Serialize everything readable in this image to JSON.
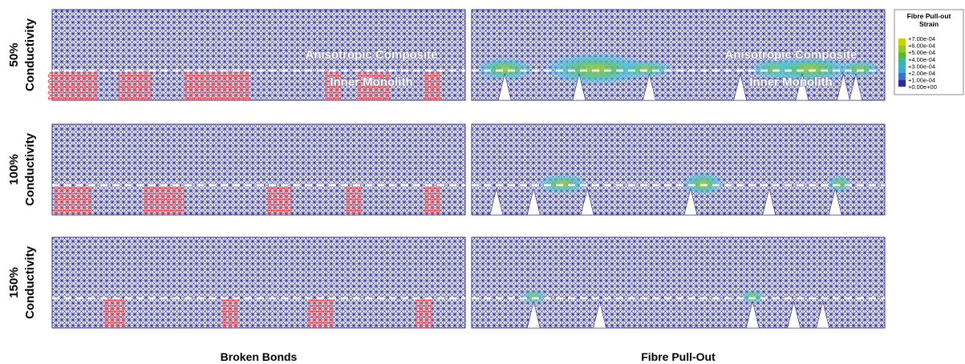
{
  "rows": [
    {
      "percent": "50%",
      "label": "Conductivity"
    },
    {
      "percent": "100%",
      "label": "Conductivity"
    },
    {
      "percent": "150%",
      "label": "Conductivity"
    }
  ],
  "columns": [
    "Broken Bonds",
    "Fibre Pull-Out"
  ],
  "annotations": {
    "upper": "Anisotropic Composite",
    "lower": "Inner Monolith"
  },
  "legend": {
    "title": [
      "Fibre Pull-out",
      "Strain"
    ],
    "labels": [
      "+7.00e-04",
      "+6.00e-04",
      "+5.00e-04",
      "+4.00e-04",
      "+3.00e-04",
      "+2.00e-04",
      "+1.00e-04",
      "+0.00e+00"
    ]
  }
}
